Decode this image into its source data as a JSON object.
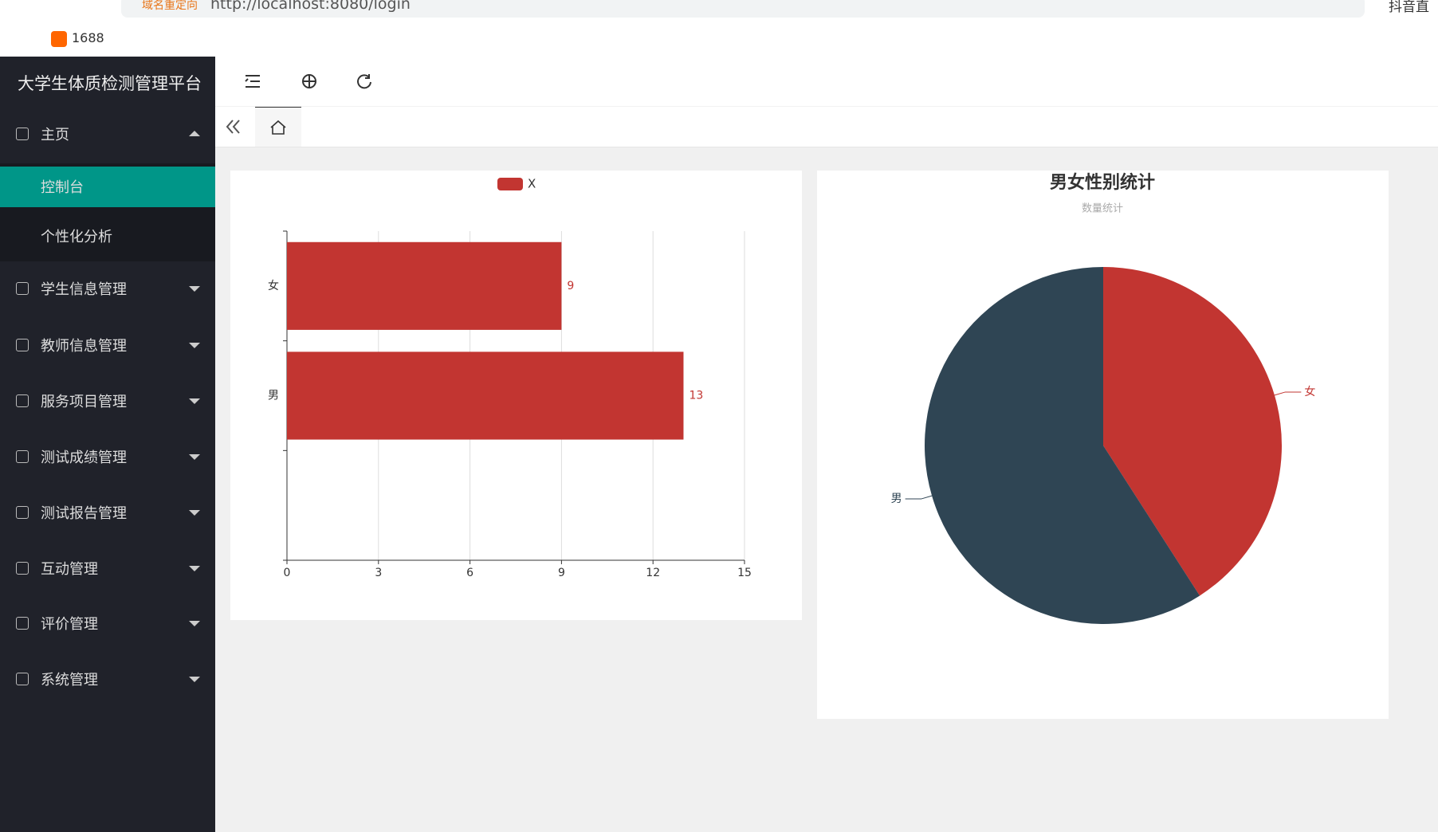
{
  "browser": {
    "redirect": "域名重定向",
    "url": "http://localhost:8080/login",
    "bookmark": "1688",
    "search": "抖音直"
  },
  "sidebar": {
    "title": "大学生体质检测管理平台",
    "menu": [
      {
        "label": "主页",
        "children": [
          "控制台",
          "个性化分析"
        ]
      },
      {
        "label": "学生信息管理"
      },
      {
        "label": "教师信息管理"
      },
      {
        "label": "服务项目管理"
      },
      {
        "label": "测试成绩管理"
      },
      {
        "label": "测试报告管理"
      },
      {
        "label": "互动管理"
      },
      {
        "label": "评价管理"
      },
      {
        "label": "系统管理"
      }
    ]
  },
  "chart_data": [
    {
      "type": "bar",
      "orientation": "horizontal",
      "categories": [
        "女",
        "男",
        null
      ],
      "series": [
        {
          "name": "X",
          "color": "#c23531",
          "values": [
            9,
            13,
            null
          ]
        }
      ],
      "xlim": [
        0,
        15
      ],
      "xticks": [
        0,
        3,
        6,
        9,
        12,
        15
      ],
      "grid": true,
      "legend": "top"
    },
    {
      "type": "pie",
      "title": "男女性别统计",
      "subtitle": "数量统计",
      "categories": [
        "女",
        "男"
      ],
      "values": [
        9,
        13
      ],
      "colors": [
        "#c23531",
        "#2f4554"
      ]
    }
  ]
}
